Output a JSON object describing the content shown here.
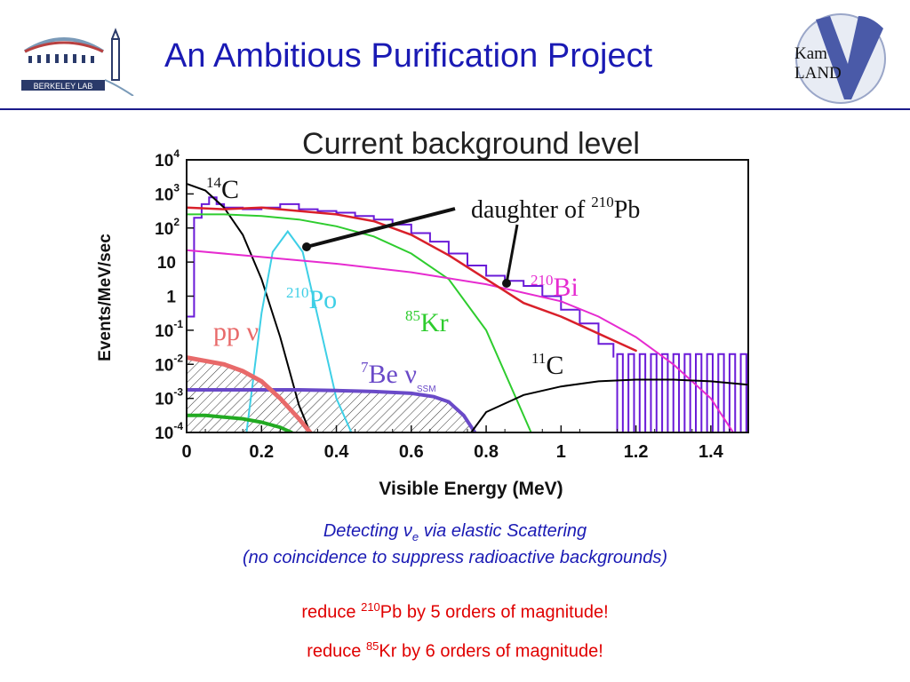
{
  "slide": {
    "title": "An Ambitious Purification Project",
    "logo_left_text": "BERKELEY LAB",
    "logo_right_text_1": "Kam",
    "logo_right_text_2": "LAND"
  },
  "captions": {
    "line1_prefix": "Detecting ",
    "line1_nu": "ν",
    "line1_sub": "e",
    "line1_suffix": " via elastic Scattering",
    "line2": "(no coincidence to suppress radioactive backgrounds)"
  },
  "reductions": [
    {
      "prefix": "reduce ",
      "mass": "210",
      "element": "Pb",
      "suffix": " by 5 orders of magnitude!"
    },
    {
      "prefix": "reduce ",
      "mass": "85",
      "element": "Kr",
      "suffix": " by 6 orders of magnitude!"
    }
  ],
  "colors": {
    "title": "#1a1ab4",
    "reduce_text": "#e00000",
    "data_histogram": "#6a1ad8",
    "c14": "#000000",
    "po210": "#3ecfe6",
    "kr85": "#2ecc2e",
    "bi210": "#e62bd0",
    "total_red": "#d9202a",
    "be7": "#6a4ac8",
    "pp": "#e86a6a",
    "c11": "#000000",
    "green_low": "#22aa22"
  },
  "chart_data": {
    "type": "line",
    "title": "Current background level",
    "xlabel": "Visible Energy (MeV)",
    "ylabel": "Events/MeV/sec",
    "xlim": [
      0,
      1.5
    ],
    "ylim_log10": [
      -4,
      4
    ],
    "x_ticks": [
      "0",
      "0.2",
      "0.4",
      "0.6",
      "0.8",
      "1",
      "1.2",
      "1.4"
    ],
    "x_tick_values": [
      0,
      0.2,
      0.4,
      0.6,
      0.8,
      1.0,
      1.2,
      1.4
    ],
    "y_ticks": [
      {
        "base": "10",
        "exp": "4",
        "value": 4
      },
      {
        "base": "10",
        "exp": "3",
        "value": 3
      },
      {
        "base": "10",
        "exp": "2",
        "value": 2
      },
      {
        "base": "10",
        "exp": "",
        "value": 1
      },
      {
        "base": "1",
        "exp": "",
        "value": 0
      },
      {
        "base": "10",
        "exp": "-1",
        "value": -1
      },
      {
        "base": "10",
        "exp": "-2",
        "value": -2
      },
      {
        "base": "10",
        "exp": "-3",
        "value": -3
      },
      {
        "base": "10",
        "exp": "-4",
        "value": -4
      }
    ],
    "series": [
      {
        "label": "14C",
        "x": [
          0.0,
          0.05,
          0.1,
          0.15,
          0.2,
          0.25,
          0.3,
          0.33
        ],
        "log10y": [
          3.3,
          3.1,
          2.6,
          1.8,
          0.5,
          -1.2,
          -3.2,
          -4.0
        ]
      },
      {
        "label": "210Po",
        "x": [
          0.16,
          0.2,
          0.23,
          0.27,
          0.31,
          0.35,
          0.4,
          0.44
        ],
        "log10y": [
          -4.0,
          -0.5,
          1.3,
          1.9,
          1.3,
          -0.6,
          -3.0,
          -4.0
        ]
      },
      {
        "label": "85Kr",
        "x": [
          0.0,
          0.1,
          0.2,
          0.3,
          0.4,
          0.5,
          0.6,
          0.7,
          0.8,
          0.88,
          0.92
        ],
        "log10y": [
          2.4,
          2.4,
          2.35,
          2.25,
          2.05,
          1.75,
          1.25,
          0.5,
          -1.0,
          -3.0,
          -4.0
        ]
      },
      {
        "label": "210Bi",
        "x": [
          0.0,
          0.2,
          0.4,
          0.6,
          0.8,
          1.0,
          1.1,
          1.2,
          1.3,
          1.4,
          1.46
        ],
        "log10y": [
          1.35,
          1.15,
          0.95,
          0.7,
          0.35,
          -0.15,
          -0.6,
          -1.2,
          -2.0,
          -3.0,
          -4.0
        ]
      },
      {
        "label": "total",
        "x": [
          0.0,
          0.1,
          0.2,
          0.3,
          0.4,
          0.5,
          0.6,
          0.7,
          0.8,
          0.9,
          1.0,
          1.1,
          1.2
        ],
        "log10y": [
          2.6,
          2.55,
          2.6,
          2.5,
          2.4,
          2.2,
          1.8,
          1.2,
          0.5,
          -0.2,
          -0.6,
          -1.1,
          -1.6
        ]
      },
      {
        "label": "7Be ν",
        "x": [
          0.0,
          0.1,
          0.2,
          0.3,
          0.4,
          0.5,
          0.6,
          0.66,
          0.7,
          0.74,
          0.77
        ],
        "log10y": [
          -2.75,
          -2.75,
          -2.75,
          -2.75,
          -2.77,
          -2.8,
          -2.85,
          -2.95,
          -3.1,
          -3.5,
          -4.0
        ]
      },
      {
        "label": "pp ν",
        "x": [
          0.0,
          0.05,
          0.1,
          0.15,
          0.2,
          0.25,
          0.3,
          0.33
        ],
        "log10y": [
          -1.8,
          -1.9,
          -2.0,
          -2.2,
          -2.5,
          -3.0,
          -3.6,
          -4.0
        ]
      },
      {
        "label": "11C",
        "x": [
          0.76,
          0.8,
          0.9,
          1.0,
          1.1,
          1.2,
          1.3,
          1.4,
          1.5
        ],
        "log10y": [
          -4.0,
          -3.4,
          -2.9,
          -2.65,
          -2.5,
          -2.45,
          -2.45,
          -2.5,
          -2.6
        ]
      },
      {
        "label": "low-green",
        "x": [
          0.0,
          0.05,
          0.1,
          0.15,
          0.2,
          0.25,
          0.28
        ],
        "log10y": [
          -3.5,
          -3.5,
          -3.55,
          -3.6,
          -3.7,
          -3.85,
          -4.0
        ]
      }
    ],
    "data_histogram": {
      "x": [
        0.0,
        0.02,
        0.04,
        0.06,
        0.08,
        0.1,
        0.15,
        0.2,
        0.25,
        0.3,
        0.35,
        0.4,
        0.45,
        0.5,
        0.55,
        0.6,
        0.65,
        0.7,
        0.75,
        0.8,
        0.85,
        0.9,
        0.95,
        1.0,
        1.05,
        1.1,
        1.14
      ],
      "log10y": [
        -0.6,
        2.3,
        2.7,
        2.9,
        2.7,
        2.6,
        2.55,
        2.6,
        2.7,
        2.55,
        2.5,
        2.45,
        2.35,
        2.25,
        2.1,
        1.85,
        1.6,
        1.25,
        0.9,
        0.6,
        0.45,
        0.3,
        0.0,
        -0.4,
        -0.8,
        -1.4,
        -1.8
      ]
    },
    "annotations": [
      {
        "text": "daughter of ",
        "sup": "210",
        "elem": "Pb"
      },
      {
        "sup": "14",
        "elem": "C"
      },
      {
        "sup": "210",
        "elem": "Po"
      },
      {
        "sup": "85",
        "elem": "Kr"
      },
      {
        "sup": "210",
        "elem": "Bi"
      },
      {
        "sup": "11",
        "elem": "C"
      },
      {
        "sup": "7",
        "elem": "Be ν",
        "sub": "SSM"
      },
      {
        "elem": "pp ν"
      }
    ]
  }
}
